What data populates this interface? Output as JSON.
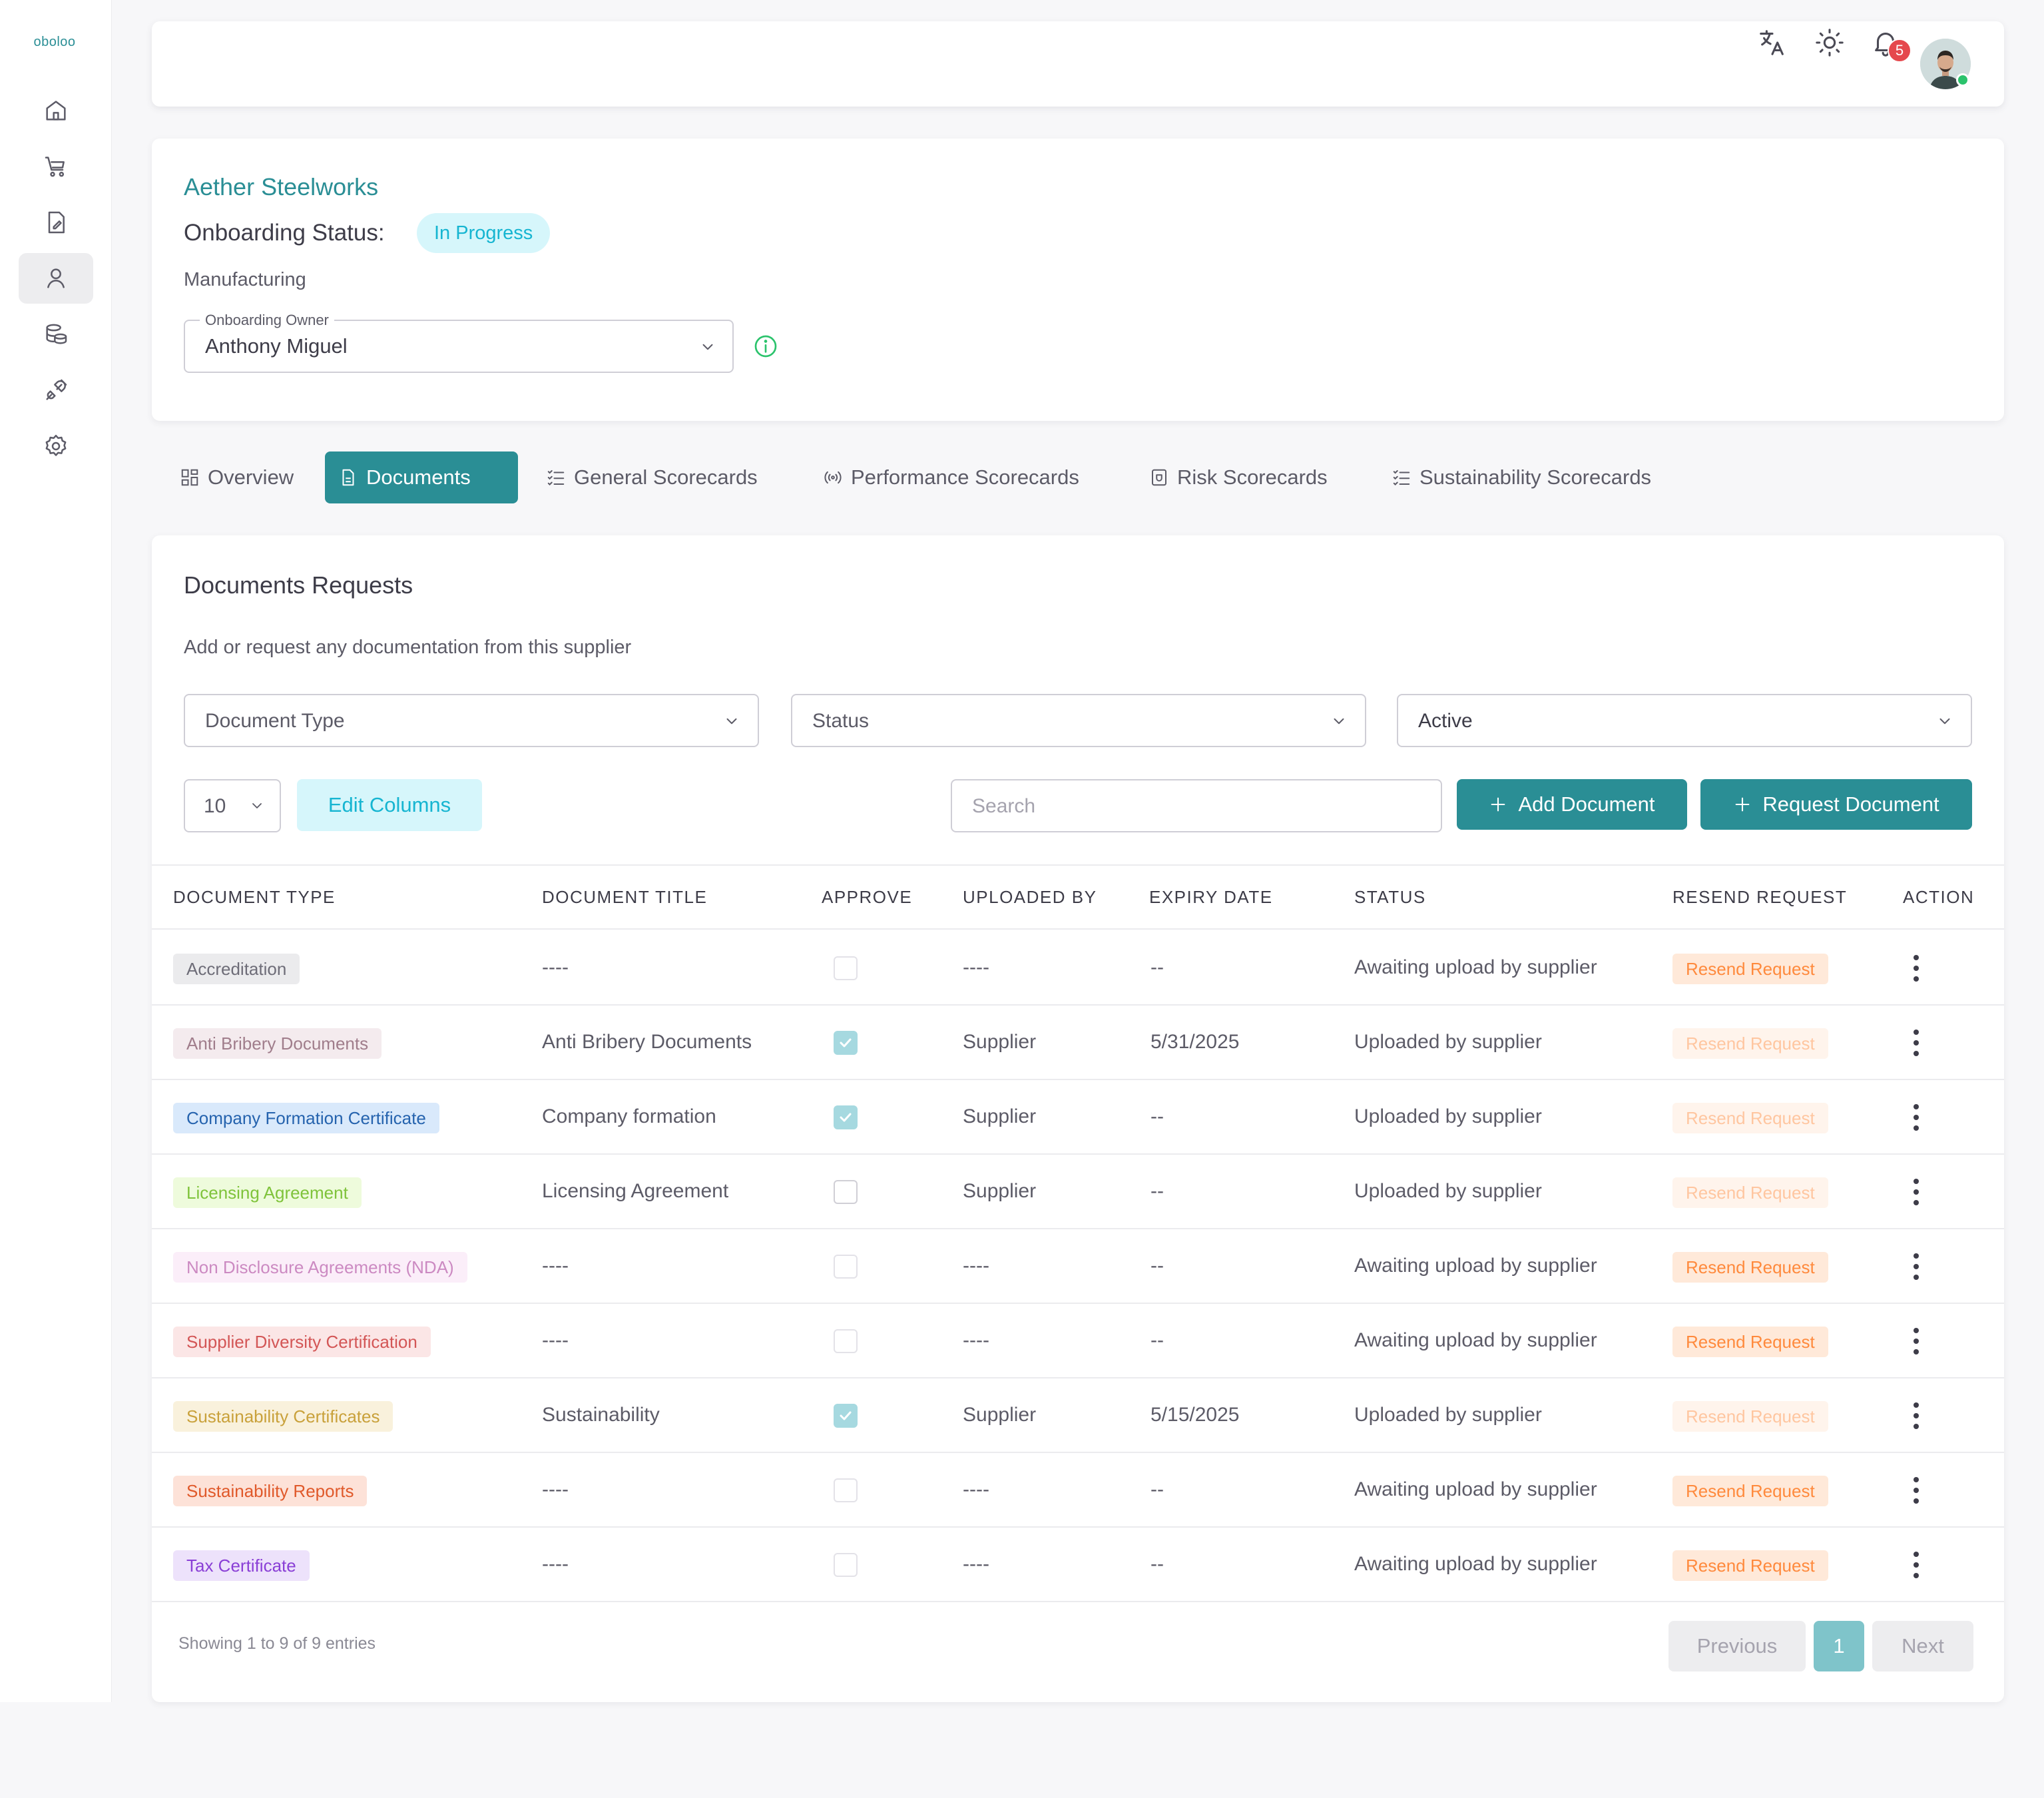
{
  "app": {
    "logo_text": "oboloo"
  },
  "sidebar": {
    "items": [
      {
        "icon": "home-icon"
      },
      {
        "icon": "cart-icon"
      },
      {
        "icon": "document-edit-icon"
      },
      {
        "icon": "user-icon",
        "active": true
      },
      {
        "icon": "database-icon"
      },
      {
        "icon": "plug-icon"
      },
      {
        "icon": "gear-icon"
      }
    ]
  },
  "topbar": {
    "notifications_count": "5"
  },
  "supplier": {
    "name": "Aether Steelworks",
    "onboarding_label": "Onboarding Status:",
    "onboarding_status": "In Progress",
    "industry": "Manufacturing",
    "owner_label": "Onboarding Owner",
    "owner_value": "Anthony Miguel"
  },
  "tabs": [
    {
      "label": "Overview",
      "icon": "grid-icon"
    },
    {
      "label": "Documents",
      "icon": "file-icon",
      "active": true
    },
    {
      "label": "General Scorecards",
      "icon": "checklist-icon"
    },
    {
      "label": "Performance Scorecards",
      "icon": "broadcast-icon"
    },
    {
      "label": "Risk Scorecards",
      "icon": "shield-box-icon"
    },
    {
      "label": "Sustainability Scorecards",
      "icon": "checklist-icon"
    }
  ],
  "documents": {
    "title": "Documents Requests",
    "subtitle": "Add or request any documentation from this supplier",
    "filters": {
      "document_type": "Document Type",
      "status": "Status",
      "active": "Active"
    },
    "page_size": "10",
    "edit_columns_label": "Edit Columns",
    "search_placeholder": "Search",
    "add_document_label": "Add Document",
    "request_document_label": "Request Document",
    "columns": {
      "document_type": "DOCUMENT TYPE",
      "document_title": "DOCUMENT TITLE",
      "approve": "APPROVE",
      "uploaded_by": "UPLOADED BY",
      "expiry_date": "EXPIRY DATE",
      "status": "STATUS",
      "resend_request": "RESEND REQUEST",
      "action": "ACTION"
    },
    "rows": [
      {
        "type": "Accreditation",
        "chip_bg": "#ebebed",
        "chip_fg": "#6e6d78",
        "title": "----",
        "approved": false,
        "checkbox_faded": true,
        "uploaded_by": "----",
        "expiry": "--",
        "status": "Awaiting upload by supplier",
        "resend": "Resend Request",
        "resend_enabled": true
      },
      {
        "type": "Anti Bribery Documents",
        "chip_bg": "#f4ebee",
        "chip_fg": "#a07d8b",
        "title": "Anti Bribery Documents",
        "approved": true,
        "checkbox_faded": false,
        "uploaded_by": "Supplier",
        "expiry": "5/31/2025",
        "status": "Uploaded by supplier",
        "resend": "Resend Request",
        "resend_enabled": false
      },
      {
        "type": "Company Formation Certificate",
        "chip_bg": "#d9e9fb",
        "chip_fg": "#2563ae",
        "title": "Company formation",
        "approved": true,
        "checkbox_faded": false,
        "uploaded_by": "Supplier",
        "expiry": "--",
        "status": "Uploaded by supplier",
        "resend": "Resend Request",
        "resend_enabled": false
      },
      {
        "type": "Licensing Agreement",
        "chip_bg": "#eefbdc",
        "chip_fg": "#7fc33b",
        "title": "Licensing Agreement",
        "approved": false,
        "checkbox_faded": false,
        "uploaded_by": "Supplier",
        "expiry": "--",
        "status": "Uploaded by supplier",
        "resend": "Resend Request",
        "resend_enabled": false
      },
      {
        "type": "Non Disclosure Agreements (NDA)",
        "chip_bg": "#fbeef9",
        "chip_fg": "#cc8ac2",
        "title": "----",
        "approved": false,
        "checkbox_faded": true,
        "uploaded_by": "----",
        "expiry": "--",
        "status": "Awaiting upload by supplier",
        "resend": "Resend Request",
        "resend_enabled": true
      },
      {
        "type": "Supplier Diversity Certification",
        "chip_bg": "#fbe6e6",
        "chip_fg": "#d35656",
        "title": "----",
        "approved": false,
        "checkbox_faded": true,
        "uploaded_by": "----",
        "expiry": "--",
        "status": "Awaiting upload by supplier",
        "resend": "Resend Request",
        "resend_enabled": true
      },
      {
        "type": "Sustainability Certificates",
        "chip_bg": "#f9f1dc",
        "chip_fg": "#c9a13b",
        "title": "Sustainability",
        "approved": true,
        "checkbox_faded": false,
        "uploaded_by": "Supplier",
        "expiry": "5/15/2025",
        "status": "Uploaded by supplier",
        "resend": "Resend Request",
        "resend_enabled": false
      },
      {
        "type": "Sustainability Reports",
        "chip_bg": "#fde2d8",
        "chip_fg": "#e0592a",
        "title": "----",
        "approved": false,
        "checkbox_faded": true,
        "uploaded_by": "----",
        "expiry": "--",
        "status": "Awaiting upload by supplier",
        "resend": "Resend Request",
        "resend_enabled": true
      },
      {
        "type": "Tax Certificate",
        "chip_bg": "#ede2fb",
        "chip_fg": "#8a3fd6",
        "title": "----",
        "approved": false,
        "checkbox_faded": true,
        "uploaded_by": "----",
        "expiry": "--",
        "status": "Awaiting upload by supplier",
        "resend": "Resend Request",
        "resend_enabled": true
      }
    ],
    "footer": {
      "showing": "Showing 1 to 9 of 9 entries",
      "previous": "Previous",
      "current_page": "1",
      "next": "Next"
    }
  }
}
